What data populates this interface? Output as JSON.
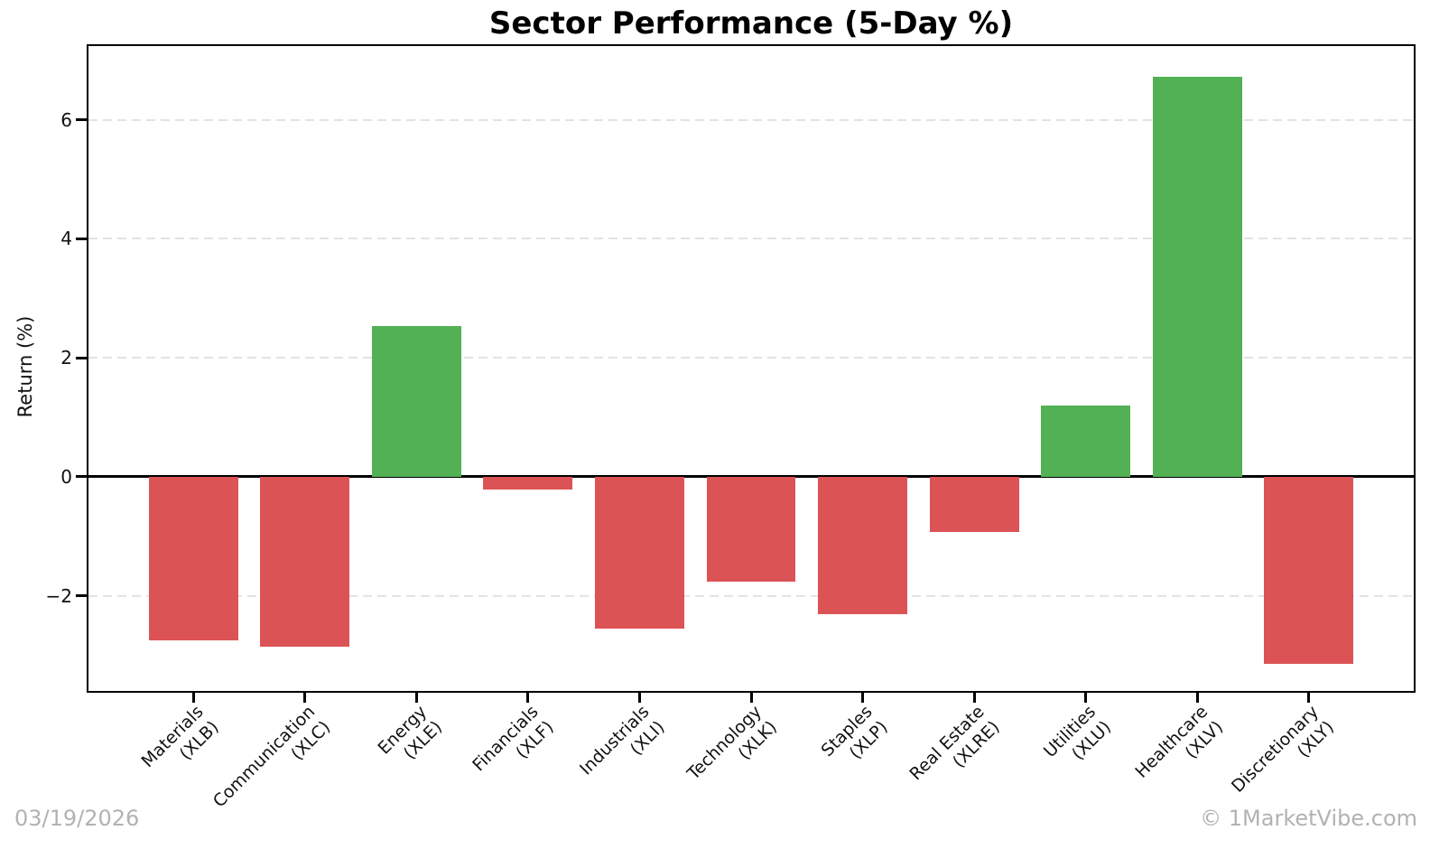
{
  "header": {
    "title": "Sector Performance (5-Day %)"
  },
  "footer": {
    "date": "03/19/2026",
    "watermark": "© 1MarketVibe.com"
  },
  "chart_data": {
    "type": "bar",
    "title": "Sector Performance (5-Day %)",
    "xlabel": "",
    "ylabel": "Return (%)",
    "categories": [
      "Materials (XLB)",
      "Communication (XLC)",
      "Energy (XLE)",
      "Financials (XLF)",
      "Industrials (XLI)",
      "Technology (XLK)",
      "Staples (XLP)",
      "Real Estate (XLRE)",
      "Utilities (XLU)",
      "Healthcare (XLV)",
      "Discretionary (XLY)"
    ],
    "category_label_lines": [
      [
        "Materials",
        "(XLB)"
      ],
      [
        "Communication",
        "(XLC)"
      ],
      [
        "Energy",
        "(XLE)"
      ],
      [
        "Financials",
        "(XLF)"
      ],
      [
        "Industrials",
        "(XLI)"
      ],
      [
        "Technology",
        "(XLK)"
      ],
      [
        "Staples",
        "(XLP)"
      ],
      [
        "Real Estate",
        "(XLRE)"
      ],
      [
        "Utilities",
        "(XLU)"
      ],
      [
        "Healthcare",
        "(XLV)"
      ],
      [
        "Discretionary",
        "(XLY)"
      ]
    ],
    "values": [
      -2.75,
      -2.85,
      2.53,
      -0.21,
      -2.55,
      -1.77,
      -2.31,
      -0.93,
      1.19,
      6.73,
      -3.14
    ],
    "yticks": [
      -2,
      0,
      2,
      4,
      6
    ],
    "ytick_labels": [
      "−2",
      "0",
      "2",
      "4",
      "6"
    ],
    "ylim": [
      -3.6,
      7.24
    ],
    "xlim": [
      -0.94,
      10.94
    ],
    "bar_width_units": 0.8,
    "grid": {
      "axis": "y",
      "style": "dashed",
      "on": true
    },
    "zero_line": true,
    "legend": "none",
    "colors": {
      "positive": "#53b155",
      "negative": "#dc5355",
      "grid": "#e3e3e3",
      "axis": "#000000",
      "footer_text": "#b2b2b2"
    }
  }
}
